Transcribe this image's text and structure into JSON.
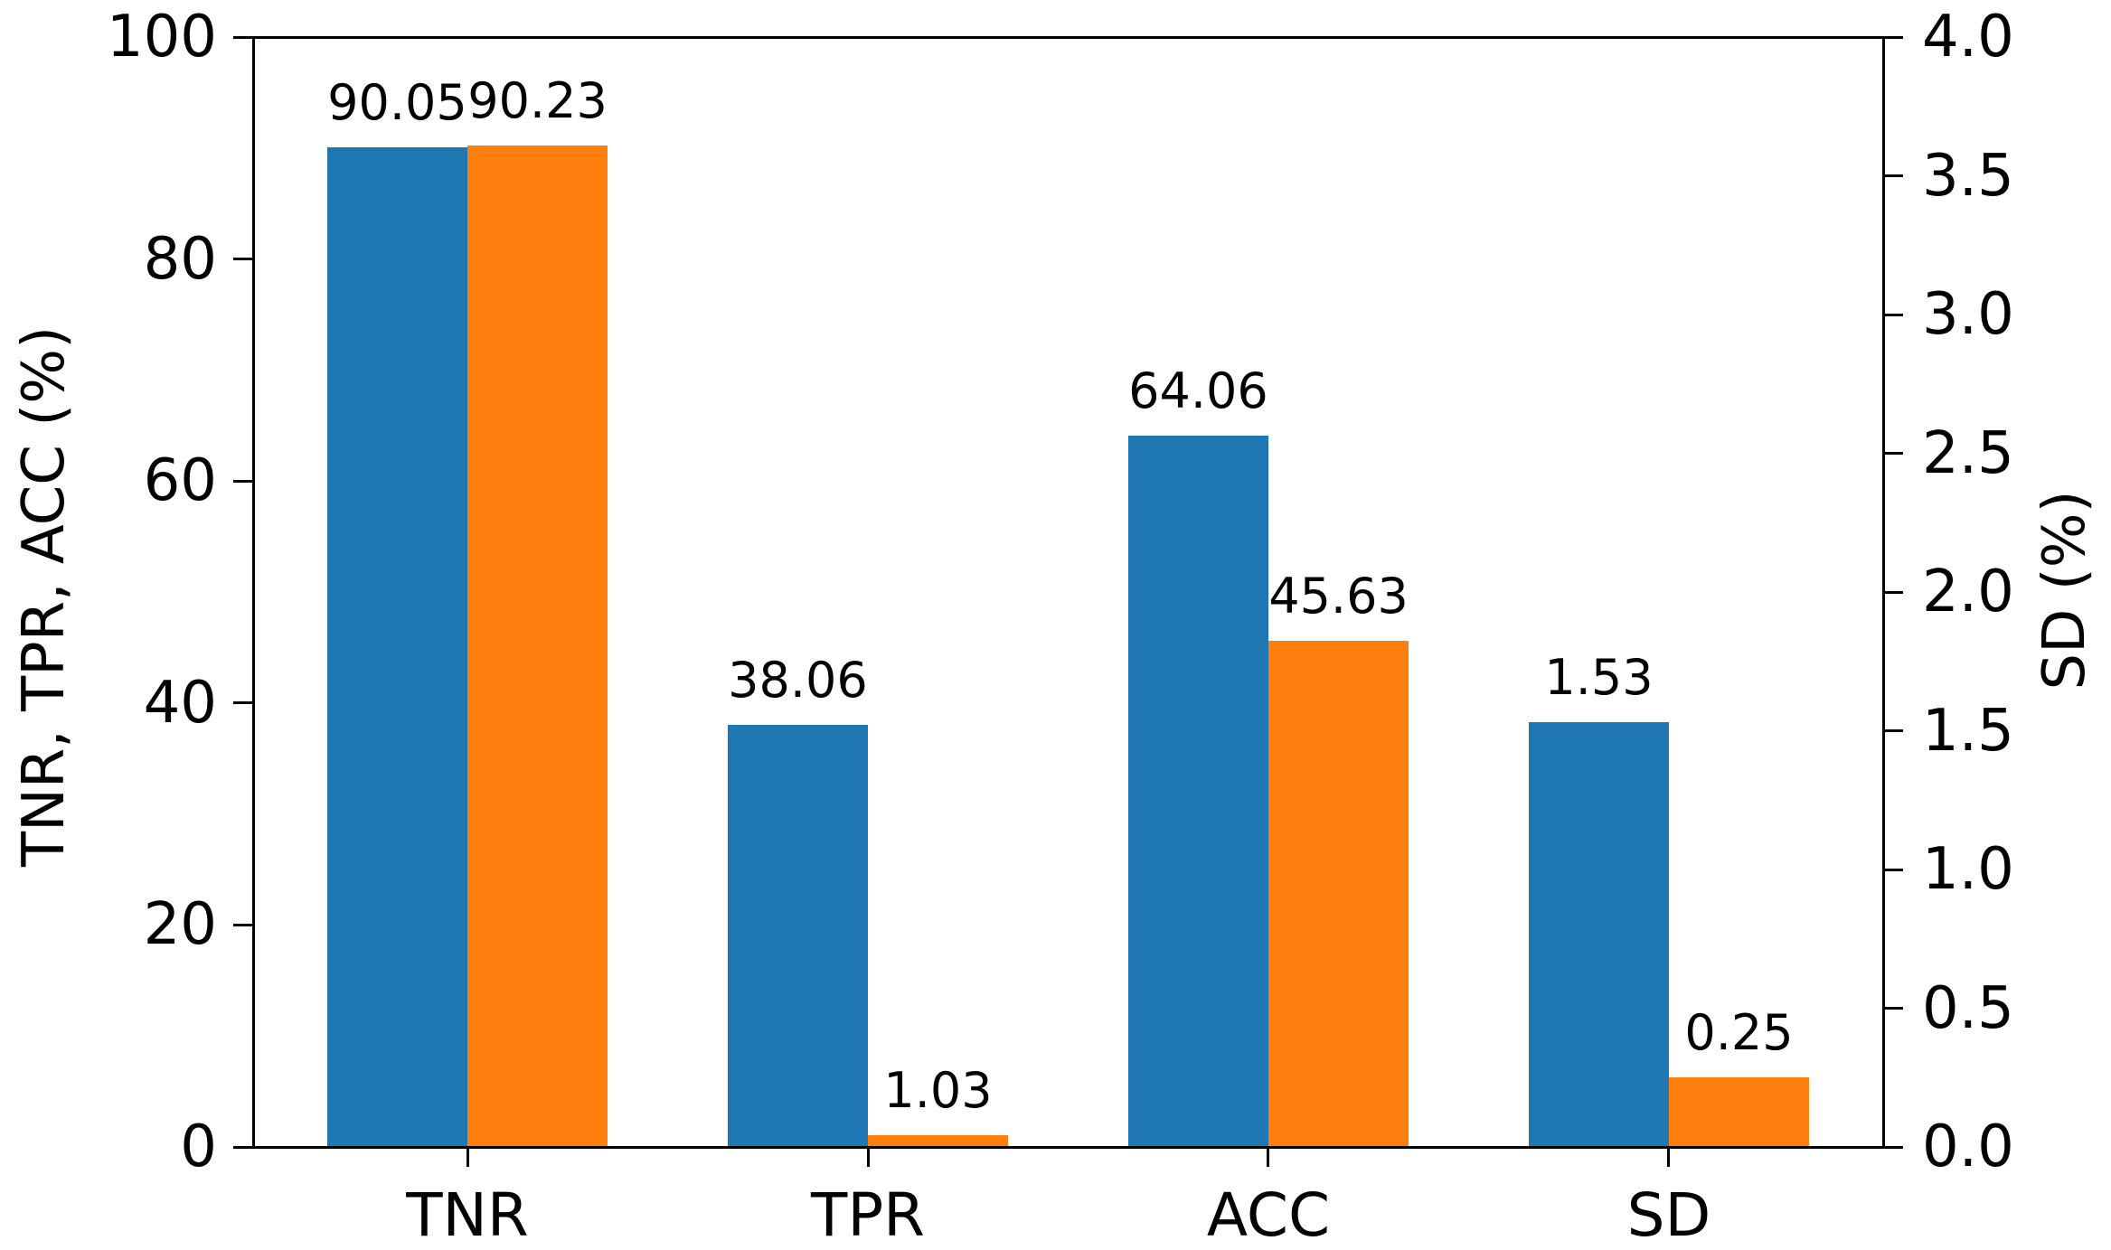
{
  "chart_data": {
    "type": "bar",
    "categories": [
      "TNR",
      "TPR",
      "ACC",
      "SD"
    ],
    "category_axis": [
      "left",
      "left",
      "left",
      "right"
    ],
    "series": [
      {
        "name": "series-blue",
        "color": "#1f77b4",
        "values": [
          90.05,
          38.06,
          64.06,
          1.53
        ],
        "labels": [
          "90.05",
          "38.06",
          "64.06",
          "1.53"
        ]
      },
      {
        "name": "series-orange",
        "color": "#ff7f0e",
        "values": [
          90.23,
          1.03,
          45.63,
          0.25
        ],
        "labels": [
          "90.23",
          "1.03",
          "45.63",
          "0.25"
        ]
      }
    ],
    "left_axis": {
      "label": "TNR, TPR, ACC (%)",
      "range": [
        0,
        100
      ],
      "tick_values": [
        0,
        20,
        40,
        60,
        80,
        100
      ],
      "ticks": [
        "0",
        "20",
        "40",
        "60",
        "80",
        "100"
      ]
    },
    "right_axis": {
      "label": "SD (%)",
      "range": [
        0,
        4
      ],
      "tick_values": [
        0,
        0.5,
        1,
        1.5,
        2,
        2.5,
        3,
        3.5,
        4
      ],
      "ticks": [
        "0.0",
        "0.5",
        "1.0",
        "1.5",
        "2.0",
        "2.5",
        "3.0",
        "3.5",
        "4.0"
      ]
    },
    "grid": false,
    "legend": null,
    "title": ""
  }
}
